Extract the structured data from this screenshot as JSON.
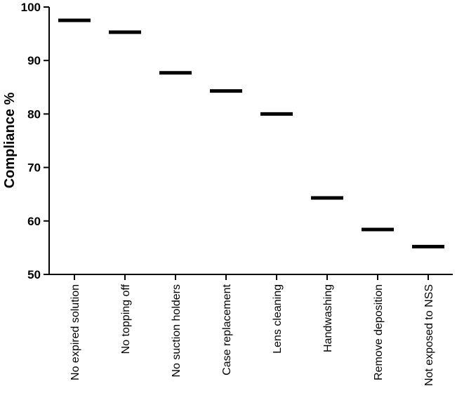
{
  "chart_data": {
    "type": "scatter",
    "title": "",
    "xlabel": "",
    "ylabel": "Compliance %",
    "ylim": [
      50,
      100
    ],
    "yticks": [
      50,
      60,
      70,
      80,
      90,
      100
    ],
    "ytick_labels": [
      "50",
      "60",
      "70",
      "80",
      "90",
      "100"
    ],
    "grid": false,
    "categories": [
      "No expired solution",
      "No topping off",
      "No suction holders",
      "Case replacement",
      "Lens cleaning",
      "Handwashing",
      "Remove deposition",
      "Not exposed to NSS"
    ],
    "values": [
      97.5,
      95.3,
      87.7,
      84.3,
      80.0,
      64.3,
      58.4,
      55.2
    ]
  }
}
